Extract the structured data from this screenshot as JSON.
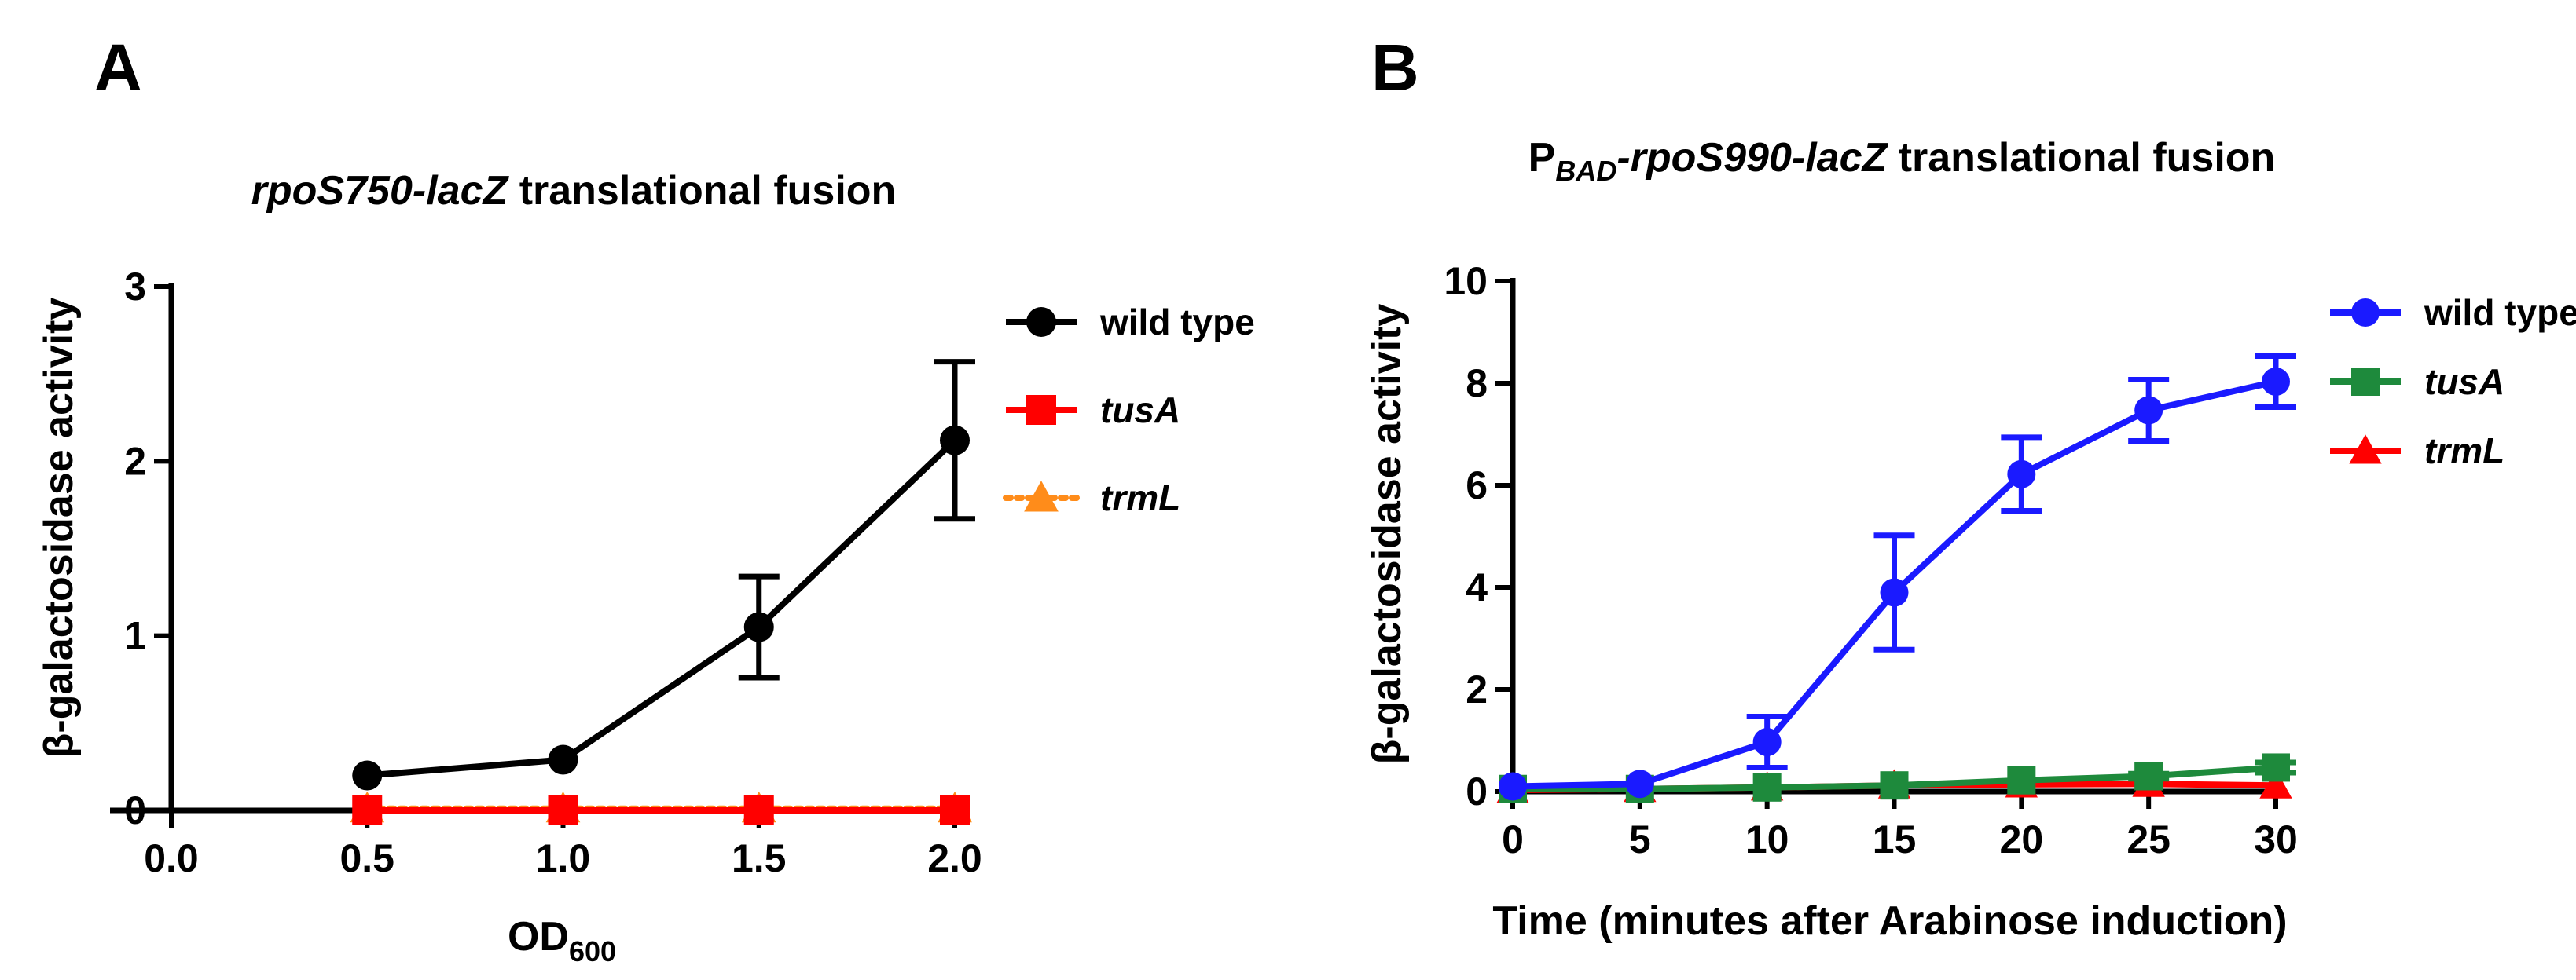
{
  "chart_data": [
    {
      "panel": "A",
      "type": "line",
      "title_parts": [
        {
          "text": "rpoS750-lacZ",
          "italic": true
        },
        {
          "text": " translational fusion",
          "italic": false
        }
      ],
      "xlabel": "OD",
      "xlabel_sub": "600",
      "ylabel": "β-galactosidase activity",
      "xlim": [
        0,
        2
      ],
      "ylim": [
        0,
        3
      ],
      "xticks": [
        "0.0",
        "0.5",
        "1.0",
        "1.5",
        "2.0"
      ],
      "yticks": [
        "0",
        "1",
        "2",
        "3"
      ],
      "x": [
        0.5,
        1.0,
        1.5,
        2.0
      ],
      "legend_position": "top-right",
      "series": [
        {
          "name": "wild type",
          "italic": false,
          "color": "#000000",
          "marker": "circle",
          "dash": "solid",
          "values": [
            0.2,
            0.29,
            1.05,
            2.12
          ],
          "errors": [
            0,
            0,
            0.29,
            0.45
          ]
        },
        {
          "name": "tusA",
          "italic": true,
          "color": "#ff0000",
          "marker": "square",
          "dash": "solid",
          "values": [
            0.0,
            0.0,
            0.0,
            0.0
          ],
          "errors": [
            0,
            0,
            0,
            0
          ]
        },
        {
          "name": "trmL",
          "italic": true,
          "color": "#ff8c1a",
          "marker": "triangle",
          "dash": "dotted",
          "values": [
            0.01,
            0.01,
            0.01,
            0.01
          ],
          "errors": [
            0,
            0,
            0,
            0
          ]
        }
      ]
    },
    {
      "panel": "B",
      "type": "line",
      "title_parts": [
        {
          "text": "P",
          "italic": false
        },
        {
          "text": "BAD",
          "italic": true,
          "sub": true
        },
        {
          "text": "-rpoS990-lacZ",
          "italic": true
        },
        {
          "text": " translational fusion",
          "italic": false
        }
      ],
      "xlabel": "Time (minutes after Arabinose induction)",
      "ylabel": "β-galactosidase activity",
      "xlim": [
        0,
        30
      ],
      "ylim": [
        0,
        10
      ],
      "xticks": [
        "0",
        "5",
        "10",
        "15",
        "20",
        "25",
        "30"
      ],
      "yticks": [
        "0",
        "2",
        "4",
        "6",
        "8",
        "10"
      ],
      "x": [
        0,
        5,
        10,
        15,
        20,
        25,
        30
      ],
      "legend_position": "top-right",
      "series": [
        {
          "name": "wild type",
          "italic": false,
          "color": "#1a1aff",
          "marker": "circle",
          "dash": "solid",
          "values": [
            0.1,
            0.15,
            0.97,
            3.9,
            6.22,
            7.47,
            8.03
          ],
          "errors": [
            0,
            0,
            0.5,
            1.12,
            0.72,
            0.6,
            0.5
          ]
        },
        {
          "name": "tusA",
          "italic": true,
          "color": "#1e8a3c",
          "marker": "square",
          "dash": "solid",
          "values": [
            0.05,
            0.05,
            0.08,
            0.12,
            0.22,
            0.3,
            0.47
          ],
          "errors": [
            0,
            0,
            0,
            0,
            0,
            0.05,
            0.1
          ]
        },
        {
          "name": "trmL",
          "italic": true,
          "color": "#ff0000",
          "marker": "triangle",
          "dash": "solid",
          "values": [
            0.03,
            0.05,
            0.08,
            0.12,
            0.14,
            0.15,
            0.12
          ],
          "errors": [
            0,
            0,
            0,
            0,
            0,
            0,
            0
          ]
        }
      ]
    }
  ]
}
